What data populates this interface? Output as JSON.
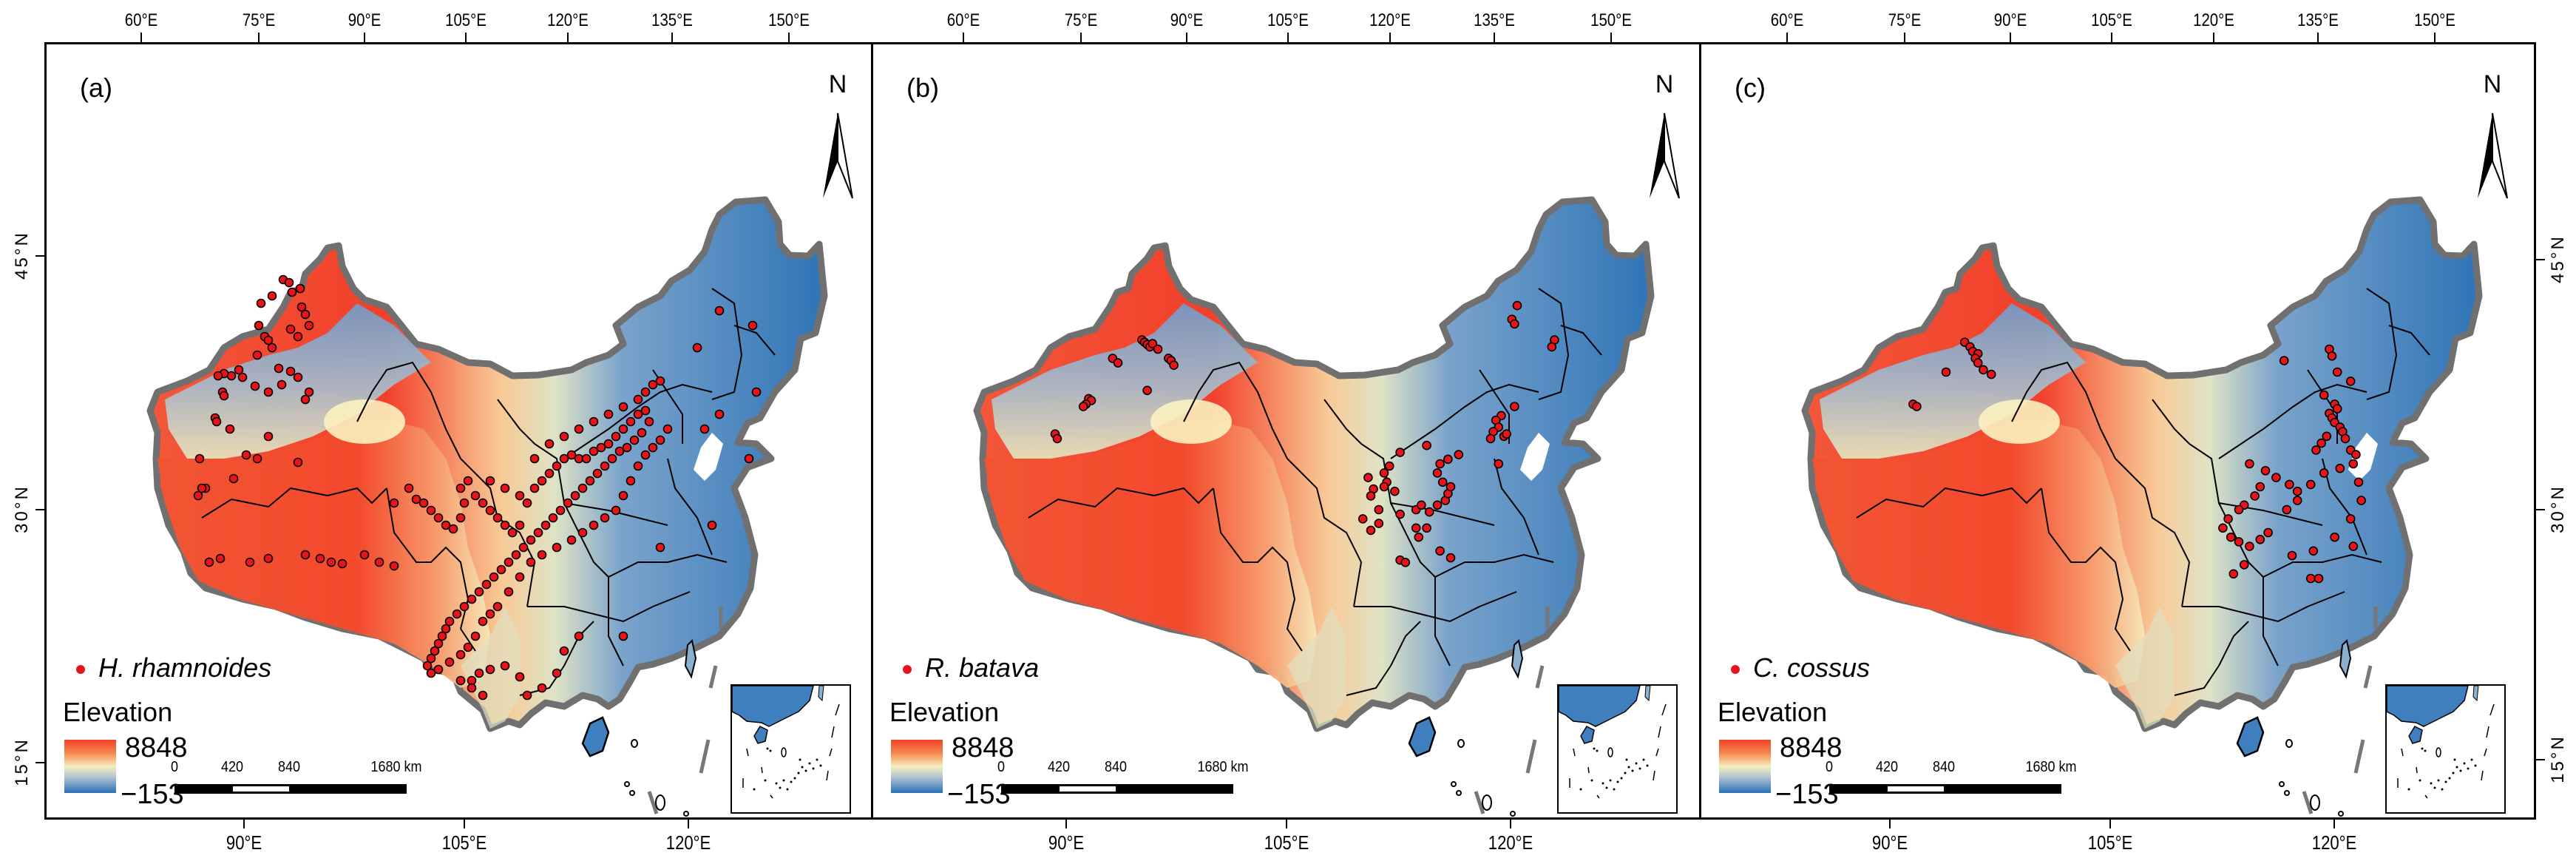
{
  "figure": {
    "axes": {
      "top_labels": [
        "60°E",
        "75°E",
        "90°E",
        "105°E",
        "120°E",
        "135°E",
        "150°E"
      ],
      "bottom_labels": [
        "90°E",
        "105°E",
        "120°E"
      ],
      "lat_labels": [
        "45°N",
        "30°N",
        "15°N"
      ]
    },
    "panels": [
      {
        "label": "(a)",
        "species": "H. rhamnoides"
      },
      {
        "label": "(b)",
        "species": "R. batava"
      },
      {
        "label": "(c)",
        "species": "C. cossus"
      }
    ],
    "north_arrow": {
      "label": "N"
    },
    "legend": {
      "elevation_title": "Elevation",
      "elevation_max": "8848",
      "elevation_min": "−153",
      "point_color": "#e8141a"
    },
    "scale_bar": {
      "labels": [
        "0",
        "420",
        "840",
        "1680 km"
      ]
    },
    "colors": {
      "high": "#f2402a",
      "mid": "#f6eebd",
      "low": "#2a70b6",
      "border": "#707070"
    }
  }
}
